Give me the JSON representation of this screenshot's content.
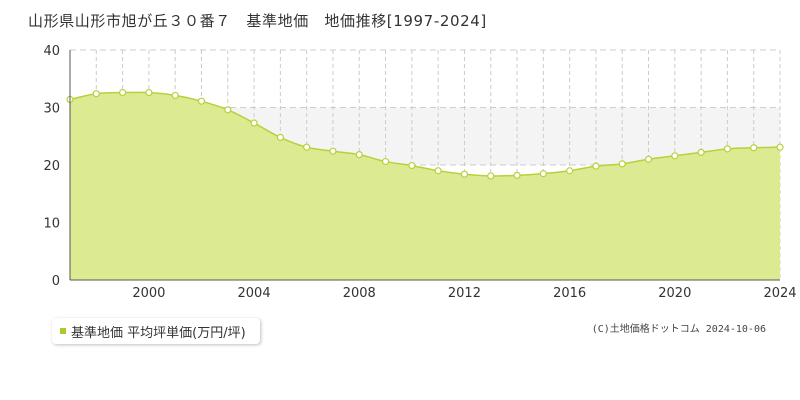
{
  "title": "山形県山形市旭が丘３０番７　基準地価　地価推移[1997-2024]",
  "legend": {
    "label": "基準地価 平均坪単価(万円/坪)"
  },
  "copyright": "(C)土地価格ドットコム 2024-10-06",
  "colors": {
    "fill": "#dceb92",
    "line": "#b5d23c",
    "marker_fill": "#ffffff",
    "marker_stroke": "#b5d23c",
    "band": "#f4f4f4",
    "grid": "#cccccc",
    "axis": "#555555",
    "text": "#333333",
    "legend_swatch": "#a8cc28"
  },
  "chart_data": {
    "type": "area",
    "title": "山形県山形市旭が丘３０番７　基準地価　地価推移[1997-2024]",
    "xlabel": "",
    "ylabel": "",
    "xlim": [
      1997,
      2024
    ],
    "ylim": [
      0,
      40
    ],
    "x_ticks": [
      2000,
      2004,
      2008,
      2012,
      2016,
      2020,
      2024
    ],
    "y_ticks": [
      0,
      10,
      20,
      30,
      40
    ],
    "grid": true,
    "legend_position": "bottom-left",
    "series": [
      {
        "name": "基準地価 平均坪単価(万円/坪)",
        "x": [
          1997,
          1998,
          1999,
          2000,
          2001,
          2002,
          2003,
          2004,
          2005,
          2006,
          2007,
          2008,
          2009,
          2010,
          2011,
          2012,
          2013,
          2014,
          2015,
          2016,
          2017,
          2018,
          2019,
          2020,
          2021,
          2022,
          2023,
          2024
        ],
        "values": [
          31.4,
          32.4,
          32.6,
          32.6,
          32.1,
          31.1,
          29.6,
          27.3,
          24.8,
          23.1,
          22.4,
          21.8,
          20.6,
          19.9,
          19.0,
          18.4,
          18.1,
          18.2,
          18.5,
          19.0,
          19.8,
          20.2,
          21.0,
          21.6,
          22.2,
          22.8,
          23.0,
          23.1
        ]
      }
    ]
  }
}
